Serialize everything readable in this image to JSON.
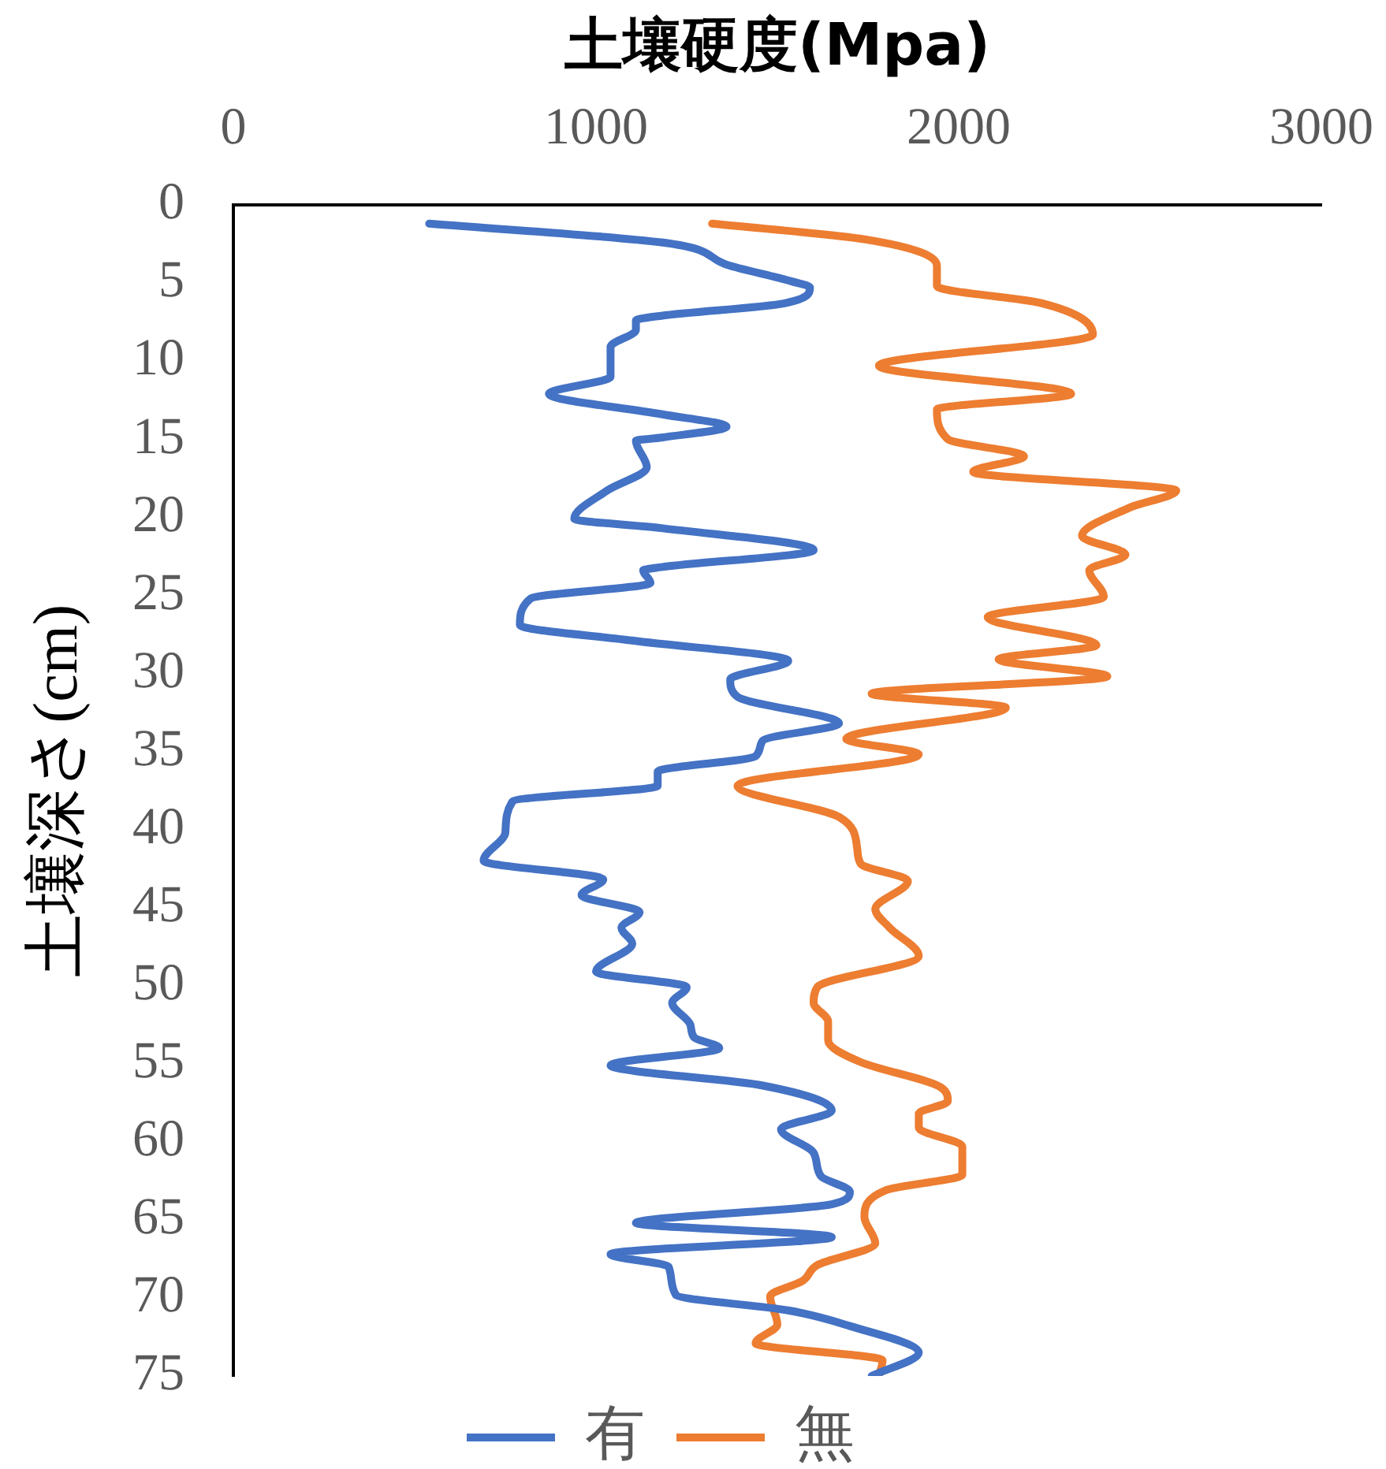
{
  "chart_data": {
    "type": "line",
    "xlabel": "土壤硬度(Mpa)",
    "ylabel": "土壤深さ(cm)",
    "xlim": [
      0,
      3000
    ],
    "xticks": [
      0,
      1000,
      2000,
      3000
    ],
    "ylim": [
      75,
      0
    ],
    "yticks": [
      0,
      5,
      10,
      15,
      20,
      25,
      30,
      35,
      40,
      45,
      50,
      55,
      60,
      65,
      70,
      75
    ],
    "legend": "bottom",
    "series": [
      {
        "name": "有",
        "color": "#4472c4",
        "x": [
          540,
          1180,
          1370,
          1540,
          1590,
          1520,
          1180,
          1110,
          1110,
          1040,
          1040,
          870,
          1180,
          1360,
          1180,
          1110,
          1140,
          1030,
          940,
          1180,
          1600,
          1180,
          1130,
          1150,
          820,
          790,
          1100,
          1530,
          1370,
          1390,
          1670,
          1460,
          1440,
          1170,
          1170,
          770,
          750,
          690,
          1020,
          960,
          1120,
          1070,
          1100,
          1000,
          1250,
          1210,
          1260,
          1270,
          1340,
          1040,
          1460,
          1650,
          1510,
          1600,
          1620,
          1700,
          1650,
          1110,
          1650,
          1040,
          1200,
          1220,
          1530,
          1700,
          1890,
          1760
        ],
        "values": [
          1.2,
          2.4,
          3.9,
          4.9,
          5.3,
          6.3,
          7.1,
          7.4,
          8.0,
          9.1,
          11.0,
          12.1,
          13.4,
          14.2,
          14.9,
          15.1,
          16.8,
          18.3,
          20.1,
          20.7,
          22.1,
          23.2,
          23.4,
          24.2,
          25.2,
          26.9,
          27.9,
          29.2,
          30.4,
          31.5,
          33.2,
          34.3,
          35.3,
          36.3,
          37.2,
          38.2,
          40.2,
          42.0,
          43.2,
          44.2,
          45.3,
          46.3,
          47.3,
          49.1,
          50.1,
          51.1,
          52.5,
          53.3,
          54.0,
          55.1,
          56.4,
          58.0,
          59.2,
          60.7,
          62.2,
          63.2,
          64.0,
          65.2,
          66.1,
          67.2,
          68.0,
          69.8,
          70.8,
          71.8,
          73.5,
          75.0
        ]
      },
      {
        "name": "無",
        "color": "#ed7d31",
        "x": [
          1320,
          1740,
          1940,
          1940,
          2230,
          2370,
          1780,
          2310,
          1940,
          1970,
          2180,
          2040,
          2600,
          2470,
          2340,
          2460,
          2360,
          2400,
          2080,
          2380,
          2110,
          2410,
          1760,
          2130,
          1690,
          1890,
          1390,
          1670,
          1720,
          1730,
          1860,
          1770,
          1810,
          1890,
          1610,
          1600,
          1640,
          1640,
          1730,
          1950,
          1970,
          1890,
          1890,
          2010,
          2010,
          1800,
          1740,
          1770,
          1610,
          1570,
          1480,
          1500,
          1440,
          1790,
          1780
        ],
        "values": [
          1.2,
          2.2,
          3.9,
          5.2,
          6.3,
          8.3,
          10.3,
          12.1,
          13.1,
          15.0,
          16.1,
          17.1,
          18.3,
          19.4,
          21.2,
          22.4,
          23.4,
          25.1,
          26.4,
          28.2,
          29.1,
          30.2,
          31.3,
          32.2,
          34.2,
          35.2,
          37.2,
          39.2,
          41.2,
          42.2,
          43.3,
          45.1,
          46.3,
          48.1,
          50.1,
          51.1,
          52.3,
          53.5,
          54.9,
          56.5,
          57.4,
          58.2,
          59.1,
          60.3,
          62.1,
          63.1,
          64.8,
          66.5,
          67.9,
          68.9,
          69.9,
          71.7,
          72.9,
          74.0,
          75.0
        ]
      }
    ]
  }
}
